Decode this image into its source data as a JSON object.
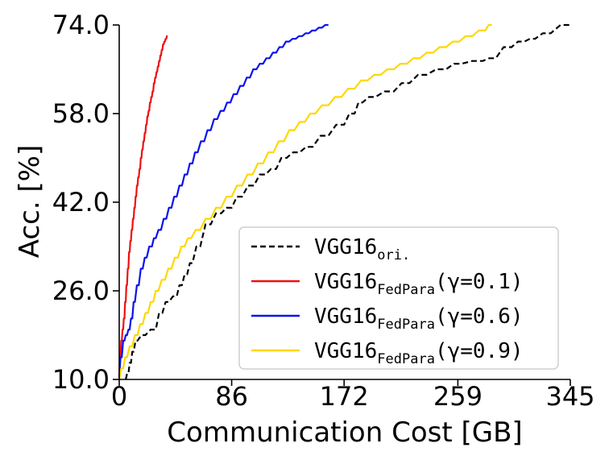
{
  "chart_data": {
    "type": "line",
    "title": "",
    "xlabel": "Communication Cost [GB]",
    "ylabel": "Acc. [%]",
    "xlim": [
      0,
      345
    ],
    "ylim": [
      10,
      74
    ],
    "xticks": [
      "0",
      "86",
      "172",
      "259",
      "345"
    ],
    "xtick_values": [
      0,
      86,
      172,
      259,
      345
    ],
    "yticks": [
      "10.0",
      "26.0",
      "42.0",
      "58.0",
      "74.0"
    ],
    "ytick_values": [
      10,
      26,
      42,
      58,
      74
    ],
    "grid": false,
    "legend_position": "lower-right",
    "series": [
      {
        "name": "VGG16",
        "name_sub": "ori.",
        "color": "#000000",
        "style": "dashed",
        "x": [
          5,
          7,
          9,
          11,
          14,
          20,
          28,
          33,
          38,
          44,
          48,
          52,
          56,
          62,
          70,
          78,
          86,
          94,
          103,
          112,
          120,
          128,
          138,
          148,
          160,
          172,
          180,
          186,
          196,
          210,
          222,
          235,
          250,
          262,
          278,
          288,
          300,
          310,
          318,
          330,
          345
        ],
        "y": [
          10,
          11,
          13,
          15,
          17,
          18,
          19,
          22,
          24,
          25,
          27,
          29,
          31,
          34,
          38,
          40,
          41,
          43,
          45,
          47,
          48,
          50,
          51,
          52,
          54,
          56,
          58,
          60,
          61,
          62,
          63.5,
          65,
          66,
          67,
          67.5,
          68,
          70,
          71,
          71.5,
          72.5,
          74
        ]
      },
      {
        "name": "VGG16",
        "name_sub": "FedPara",
        "name_suffix": "(γ=0.1)",
        "color": "#ee1111",
        "style": "solid",
        "x": [
          0,
          1,
          2,
          3,
          4,
          5,
          6,
          7,
          8,
          9,
          10,
          11,
          12,
          13,
          14,
          15,
          16,
          17,
          18,
          19,
          20,
          21,
          22,
          23,
          24,
          25,
          26,
          27,
          28,
          29,
          30,
          31,
          32,
          33,
          34,
          35,
          36,
          37
        ],
        "y": [
          10,
          14,
          17,
          19,
          21,
          24,
          27,
          30,
          33,
          35,
          37,
          39,
          41,
          43,
          45,
          46.5,
          48,
          50,
          51.5,
          53,
          54.5,
          56,
          57.5,
          58.5,
          60,
          61,
          62,
          63.5,
          64.5,
          65.5,
          66.5,
          67.5,
          68.5,
          69.5,
          70.5,
          71,
          71.5,
          72
        ]
      },
      {
        "name": "VGG16",
        "name_sub": "FedPara",
        "name_suffix": "(γ=0.6)",
        "color": "#0a12ee",
        "style": "solid",
        "x": [
          0,
          2,
          4,
          6,
          8,
          10,
          12,
          15,
          18,
          21,
          25,
          28,
          32,
          36,
          40,
          44,
          48,
          52,
          56,
          60,
          65,
          70,
          75,
          80,
          85,
          90,
          95,
          100,
          105,
          110,
          115,
          120,
          125,
          130,
          135,
          140,
          145,
          150,
          155,
          160
        ],
        "y": [
          10,
          14,
          17,
          18,
          19,
          21,
          24,
          27,
          30,
          32,
          34,
          35.5,
          37,
          39,
          41,
          43,
          45,
          47,
          49,
          51,
          53,
          55,
          57,
          58.5,
          60,
          61.5,
          63,
          64.5,
          66,
          67,
          68,
          69,
          70,
          71,
          71.5,
          72,
          72.5,
          73,
          73.5,
          74
        ]
      },
      {
        "name": "VGG16",
        "name_sub": "FedPara",
        "name_suffix": "(γ=0.9)",
        "color": "#ffd700",
        "style": "solid",
        "x": [
          0,
          3,
          6,
          10,
          14,
          18,
          22,
          26,
          30,
          35,
          40,
          45,
          50,
          55,
          62,
          70,
          78,
          86,
          94,
          102,
          110,
          118,
          126,
          134,
          142,
          150,
          160,
          170,
          180,
          190,
          200,
          210,
          220,
          230,
          240,
          250,
          260,
          270,
          280,
          285
        ],
        "y": [
          10,
          12,
          14,
          16,
          18,
          20,
          22,
          24,
          26,
          28,
          30,
          32,
          34,
          35.5,
          37,
          39,
          41,
          43,
          45,
          47,
          49,
          51,
          53,
          55,
          56.5,
          58,
          59.5,
          61,
          62.5,
          64,
          65,
          66,
          67,
          68,
          69,
          70,
          71,
          72,
          73,
          74
        ]
      }
    ]
  }
}
